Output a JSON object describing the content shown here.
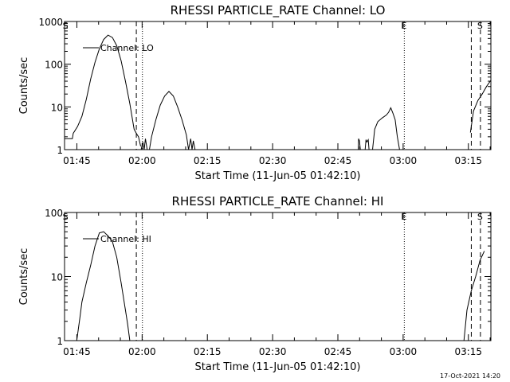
{
  "chart_data": [
    {
      "type": "line",
      "title": "RHESSI PARTICLE_RATE Channel: LO",
      "xlabel": "Start Time (11-Jun-05 01:42:10)",
      "ylabel": "Counts/sec",
      "yscale": "log",
      "ylim": [
        1,
        1000
      ],
      "y_ticks": [
        1,
        10,
        100,
        1000
      ],
      "x_units": "minutes after 01:42:10",
      "xlim": [
        0,
        98
      ],
      "x_ticks": [
        {
          "value": 2.83,
          "label": "01:45"
        },
        {
          "value": 17.83,
          "label": "02:00"
        },
        {
          "value": 32.83,
          "label": "02:15"
        },
        {
          "value": 47.83,
          "label": "02:30"
        },
        {
          "value": 62.83,
          "label": "02:45"
        },
        {
          "value": 77.83,
          "label": "03:00"
        },
        {
          "value": 92.83,
          "label": "03:15"
        }
      ],
      "legend": "Channel: LO",
      "markers": [
        {
          "x": 0.3,
          "label": "S",
          "style": "none"
        },
        {
          "x": 16.5,
          "label": "",
          "style": "dashed"
        },
        {
          "x": 17.9,
          "label": "",
          "style": "dotted"
        },
        {
          "x": 78.1,
          "label": "E",
          "style": "dotted"
        },
        {
          "x": 93.5,
          "label": "",
          "style": "dashed"
        },
        {
          "x": 95.6,
          "label": "S",
          "style": "dashed"
        }
      ],
      "series": [
        {
          "name": "Channel: LO",
          "segments": [
            {
              "x": [
                0,
                1.8,
                2,
                3,
                4,
                5,
                6,
                7,
                8,
                9,
                10,
                11,
                12,
                13,
                14,
                15,
                16,
                16.5,
                17,
                17.5
              ],
              "y": [
                1.8,
                1.8,
                2.4,
                3.5,
                6,
                15,
                45,
                110,
                230,
                380,
                480,
                420,
                270,
                120,
                40,
                12,
                3,
                2.4,
                2.0,
                1.2
              ]
            },
            {
              "x": [
                17.6,
                18,
                18.3,
                18.6,
                19.0
              ],
              "y": [
                1.0,
                1.5,
                1.0,
                1.8,
                1.0
              ]
            },
            {
              "x": [
                19.5,
                20,
                21,
                22,
                23,
                24,
                25,
                26,
                27,
                28,
                28.5,
                29,
                29.3,
                29.6,
                30
              ],
              "y": [
                1.0,
                2,
                5,
                11,
                18,
                23,
                18,
                10,
                5,
                2.2,
                1.0,
                1.8,
                1.0,
                1.6,
                1.0
              ]
            },
            {
              "x": [
                67.5,
                67.6,
                67.8,
                68.0
              ],
              "y": [
                1.0,
                1.8,
                1.6,
                1.0
              ]
            },
            {
              "x": [
                69.1,
                69.3,
                69.5,
                69.8,
                70.0
              ],
              "y": [
                1.0,
                1.7,
                1.5,
                1.7,
                1.0
              ]
            },
            {
              "x": [
                70.8,
                71.3,
                72,
                73,
                74,
                74.5,
                75,
                75.5,
                76,
                76.5,
                77
              ],
              "y": [
                1.0,
                3,
                4.5,
                5.5,
                6.5,
                7.5,
                9.5,
                7,
                5,
                2,
                1.0
              ]
            },
            {
              "x": [
                93.3,
                94,
                95,
                96,
                97,
                98
              ],
              "y": [
                2.5,
                8,
                14,
                20,
                30,
                42
              ]
            }
          ]
        }
      ]
    },
    {
      "type": "line",
      "title": "RHESSI PARTICLE_RATE Channel: HI",
      "xlabel": "Start Time (11-Jun-05 01:42:10)",
      "ylabel": "Counts/sec",
      "yscale": "log",
      "ylim": [
        1,
        100
      ],
      "y_ticks": [
        1,
        10,
        100
      ],
      "x_units": "minutes after 01:42:10",
      "xlim": [
        0,
        98
      ],
      "x_ticks": [
        {
          "value": 2.83,
          "label": "01:45"
        },
        {
          "value": 17.83,
          "label": "02:00"
        },
        {
          "value": 32.83,
          "label": "02:15"
        },
        {
          "value": 47.83,
          "label": "02:30"
        },
        {
          "value": 62.83,
          "label": "02:45"
        },
        {
          "value": 77.83,
          "label": "03:00"
        },
        {
          "value": 92.83,
          "label": "03:15"
        }
      ],
      "legend": "Channel: HI",
      "markers": [
        {
          "x": 0.3,
          "label": "S",
          "style": "none"
        },
        {
          "x": 16.5,
          "label": "",
          "style": "dashed"
        },
        {
          "x": 17.9,
          "label": "",
          "style": "dotted"
        },
        {
          "x": 78.1,
          "label": "E",
          "style": "dotted"
        },
        {
          "x": 93.5,
          "label": "",
          "style": "dashed"
        },
        {
          "x": 95.6,
          "label": "S",
          "style": "dashed"
        }
      ],
      "series": [
        {
          "name": "Channel: HI",
          "segments": [
            {
              "x": [
                2.8,
                3.5,
                4,
                5,
                6,
                7,
                8,
                9,
                10,
                11,
                12,
                13,
                14,
                14.5,
                15
              ],
              "y": [
                1.0,
                2.2,
                4,
                8,
                15,
                30,
                48,
                50,
                43,
                35,
                20,
                8,
                3,
                1.8,
                1.0
              ]
            },
            {
              "x": [
                91.8,
                92.5,
                93.5,
                94.5,
                95.5,
                96.5
              ],
              "y": [
                1.0,
                3,
                6,
                10,
                18,
                25
              ]
            }
          ]
        }
      ]
    }
  ],
  "footer": {
    "timestamp": "17-Oct-2021 14:20"
  }
}
